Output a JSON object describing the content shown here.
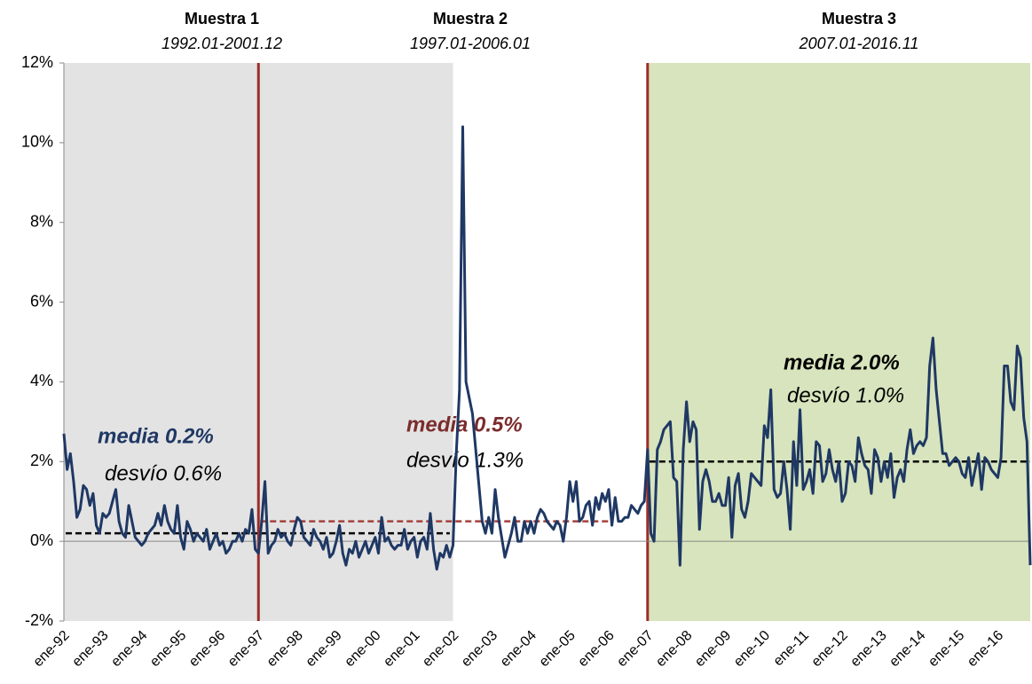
{
  "chart_data": {
    "type": "line",
    "categories": [
      "ene-92",
      null,
      null,
      null,
      null,
      null,
      null,
      null,
      null,
      null,
      null,
      null,
      "ene-93",
      null,
      null,
      null,
      null,
      null,
      null,
      null,
      null,
      null,
      null,
      null,
      "ene-94",
      null,
      null,
      null,
      null,
      null,
      null,
      null,
      null,
      null,
      null,
      null,
      "ene-95",
      null,
      null,
      null,
      null,
      null,
      null,
      null,
      null,
      null,
      null,
      null,
      "ene-96",
      null,
      null,
      null,
      null,
      null,
      null,
      null,
      null,
      null,
      null,
      null,
      "ene-97",
      null,
      null,
      null,
      null,
      null,
      null,
      null,
      null,
      null,
      null,
      null,
      "ene-98",
      null,
      null,
      null,
      null,
      null,
      null,
      null,
      null,
      null,
      null,
      null,
      "ene-99",
      null,
      null,
      null,
      null,
      null,
      null,
      null,
      null,
      null,
      null,
      null,
      "ene-00",
      null,
      null,
      null,
      null,
      null,
      null,
      null,
      null,
      null,
      null,
      null,
      "ene-01",
      null,
      null,
      null,
      null,
      null,
      null,
      null,
      null,
      null,
      null,
      null,
      "ene-02",
      null,
      null,
      null,
      null,
      null,
      null,
      null,
      null,
      null,
      null,
      null,
      "ene-03",
      null,
      null,
      null,
      null,
      null,
      null,
      null,
      null,
      null,
      null,
      null,
      "ene-04",
      null,
      null,
      null,
      null,
      null,
      null,
      null,
      null,
      null,
      null,
      null,
      "ene-05",
      null,
      null,
      null,
      null,
      null,
      null,
      null,
      null,
      null,
      null,
      null,
      "ene-06",
      null,
      null,
      null,
      null,
      null,
      null,
      null,
      null,
      null,
      null,
      null,
      "ene-07",
      null,
      null,
      null,
      null,
      null,
      null,
      null,
      null,
      null,
      null,
      null,
      "ene-08",
      null,
      null,
      null,
      null,
      null,
      null,
      null,
      null,
      null,
      null,
      null,
      "ene-09",
      null,
      null,
      null,
      null,
      null,
      null,
      null,
      null,
      null,
      null,
      null,
      "ene-10",
      null,
      null,
      null,
      null,
      null,
      null,
      null,
      null,
      null,
      null,
      null,
      "ene-11",
      null,
      null,
      null,
      null,
      null,
      null,
      null,
      null,
      null,
      null,
      null,
      "ene-12",
      null,
      null,
      null,
      null,
      null,
      null,
      null,
      null,
      null,
      null,
      null,
      "ene-13",
      null,
      null,
      null,
      null,
      null,
      null,
      null,
      null,
      null,
      null,
      null,
      "ene-14",
      null,
      null,
      null,
      null,
      null,
      null,
      null,
      null,
      null,
      null,
      null,
      "ene-15",
      null,
      null,
      null,
      null,
      null,
      null,
      null,
      null,
      null,
      null,
      null,
      "ene-16",
      null,
      null,
      null,
      null,
      null,
      null,
      null,
      null,
      null,
      null
    ],
    "series": [
      {
        "color": "#1f3864",
        "values": [
          2.7,
          1.8,
          2.2,
          1.5,
          0.6,
          0.8,
          1.4,
          1.3,
          0.9,
          1.2,
          0.4,
          0.2,
          0.7,
          0.6,
          0.7,
          1.0,
          1.3,
          0.5,
          0.2,
          0.1,
          0.9,
          0.5,
          0.1,
          0.0,
          -0.1,
          0.0,
          0.2,
          0.3,
          0.4,
          0.7,
          0.4,
          0.9,
          0.5,
          0.3,
          0.2,
          0.9,
          0.1,
          -0.2,
          0.5,
          0.3,
          0.0,
          0.2,
          0.1,
          0.0,
          0.3,
          -0.2,
          0.0,
          0.2,
          -0.1,
          0.0,
          -0.3,
          -0.2,
          0.0,
          0.0,
          0.2,
          0.0,
          0.3,
          0.2,
          0.8,
          -0.2,
          -0.3,
          0.5,
          1.5,
          -0.3,
          -0.1,
          0.0,
          0.3,
          0.1,
          0.2,
          0.0,
          -0.1,
          0.3,
          0.6,
          0.5,
          0.1,
          0.0,
          -0.1,
          0.3,
          0.1,
          0.0,
          -0.2,
          0.1,
          -0.4,
          -0.3,
          0.0,
          0.4,
          -0.3,
          -0.6,
          -0.2,
          -0.3,
          0.0,
          -0.4,
          -0.2,
          0.0,
          -0.3,
          -0.1,
          0.1,
          -0.3,
          0.6,
          0.0,
          0.1,
          -0.1,
          -0.2,
          -0.1,
          -0.1,
          0.3,
          -0.2,
          0.0,
          0.1,
          -0.4,
          0.0,
          0.1,
          -0.2,
          0.7,
          -0.2,
          -0.7,
          -0.3,
          -0.4,
          -0.1,
          -0.4,
          -0.1,
          2.2,
          3.8,
          10.4,
          4.0,
          3.6,
          3.2,
          2.3,
          1.4,
          0.5,
          0.2,
          0.6,
          0.2,
          1.3,
          0.6,
          0.1,
          -0.4,
          -0.1,
          0.2,
          0.6,
          0.0,
          0.0,
          0.5,
          0.2,
          0.5,
          0.2,
          0.6,
          0.8,
          0.7,
          0.5,
          0.4,
          0.3,
          0.5,
          0.4,
          0.0,
          0.6,
          1.5,
          1.0,
          1.5,
          0.5,
          0.6,
          0.9,
          1.0,
          0.4,
          1.1,
          0.8,
          1.2,
          1.0,
          1.3,
          0.4,
          1.1,
          0.5,
          0.5,
          0.6,
          0.6,
          0.9,
          0.8,
          0.7,
          0.9,
          1.0,
          2.3,
          0.2,
          0.0,
          2.3,
          2.5,
          2.8,
          2.9,
          3.0,
          1.6,
          1.5,
          -0.6,
          2.3,
          3.5,
          2.5,
          3.0,
          2.8,
          0.3,
          1.5,
          1.8,
          1.5,
          1.0,
          1.0,
          1.2,
          0.9,
          0.9,
          1.6,
          0.1,
          1.4,
          1.7,
          0.8,
          0.6,
          1.0,
          1.7,
          1.6,
          1.5,
          1.4,
          2.9,
          2.6,
          3.8,
          1.3,
          1.1,
          1.2,
          2.0,
          1.3,
          0.3,
          2.5,
          1.4,
          3.3,
          1.3,
          1.5,
          1.8,
          1.2,
          2.5,
          2.4,
          1.5,
          1.7,
          2.3,
          1.8,
          1.5,
          2.0,
          1.0,
          1.2,
          2.0,
          1.9,
          1.5,
          2.6,
          2.2,
          1.9,
          1.8,
          1.2,
          2.3,
          2.1,
          1.5,
          2.0,
          1.6,
          2.2,
          1.1,
          1.6,
          1.8,
          1.5,
          2.3,
          2.8,
          2.2,
          2.4,
          2.5,
          2.4,
          2.6,
          4.4,
          5.1,
          3.8,
          3.0,
          2.2,
          2.2,
          1.9,
          2.0,
          2.1,
          2.0,
          1.7,
          1.6,
          2.1,
          1.4,
          1.8,
          2.2,
          1.3,
          2.1,
          2.0,
          1.8,
          1.7,
          1.6,
          2.1,
          4.4,
          4.4,
          3.5,
          3.3,
          4.9,
          4.6,
          3.1,
          2.5,
          -0.6
        ]
      }
    ],
    "ylim": [
      -2,
      12
    ],
    "yticks": [
      {
        "value": -2,
        "label": "-2%"
      },
      {
        "value": 0,
        "label": "0%"
      },
      {
        "value": 2,
        "label": "2%"
      },
      {
        "value": 4,
        "label": "4%"
      },
      {
        "value": 6,
        "label": "6%"
      },
      {
        "value": 8,
        "label": "8%"
      },
      {
        "value": 10,
        "label": "10%"
      },
      {
        "value": 12,
        "label": "12%"
      }
    ],
    "samples": [
      {
        "name": "Muestra 1",
        "period": "1992.01-2001.12",
        "shade": "#e3e3e3",
        "mean": 0.2,
        "mean_label": "media 0.2%",
        "mean_color": "#1f3864",
        "line_color": "#000000",
        "sd": 0.6,
        "sd_label": "desvío 0.6%"
      },
      {
        "name": "Muestra 2",
        "period": "1997.01-2006.01",
        "shade": null,
        "divider": "#9b2d2a",
        "mean": 0.5,
        "mean_label": "media 0.5%",
        "mean_color": "#7b2c2c",
        "line_color": "#a5403b",
        "sd": 1.3,
        "sd_label": "desvío 1.3%"
      },
      {
        "name": "Muestra 3",
        "period": "2007.01-2016.11",
        "shade": "#d7e4bd",
        "divider": "#9b2d2a",
        "mean": 2.0,
        "mean_label": "media 2.0%",
        "mean_color": "#000000",
        "line_color": "#000000",
        "sd": 1.0,
        "sd_label": "desvío 1.0%"
      }
    ]
  }
}
